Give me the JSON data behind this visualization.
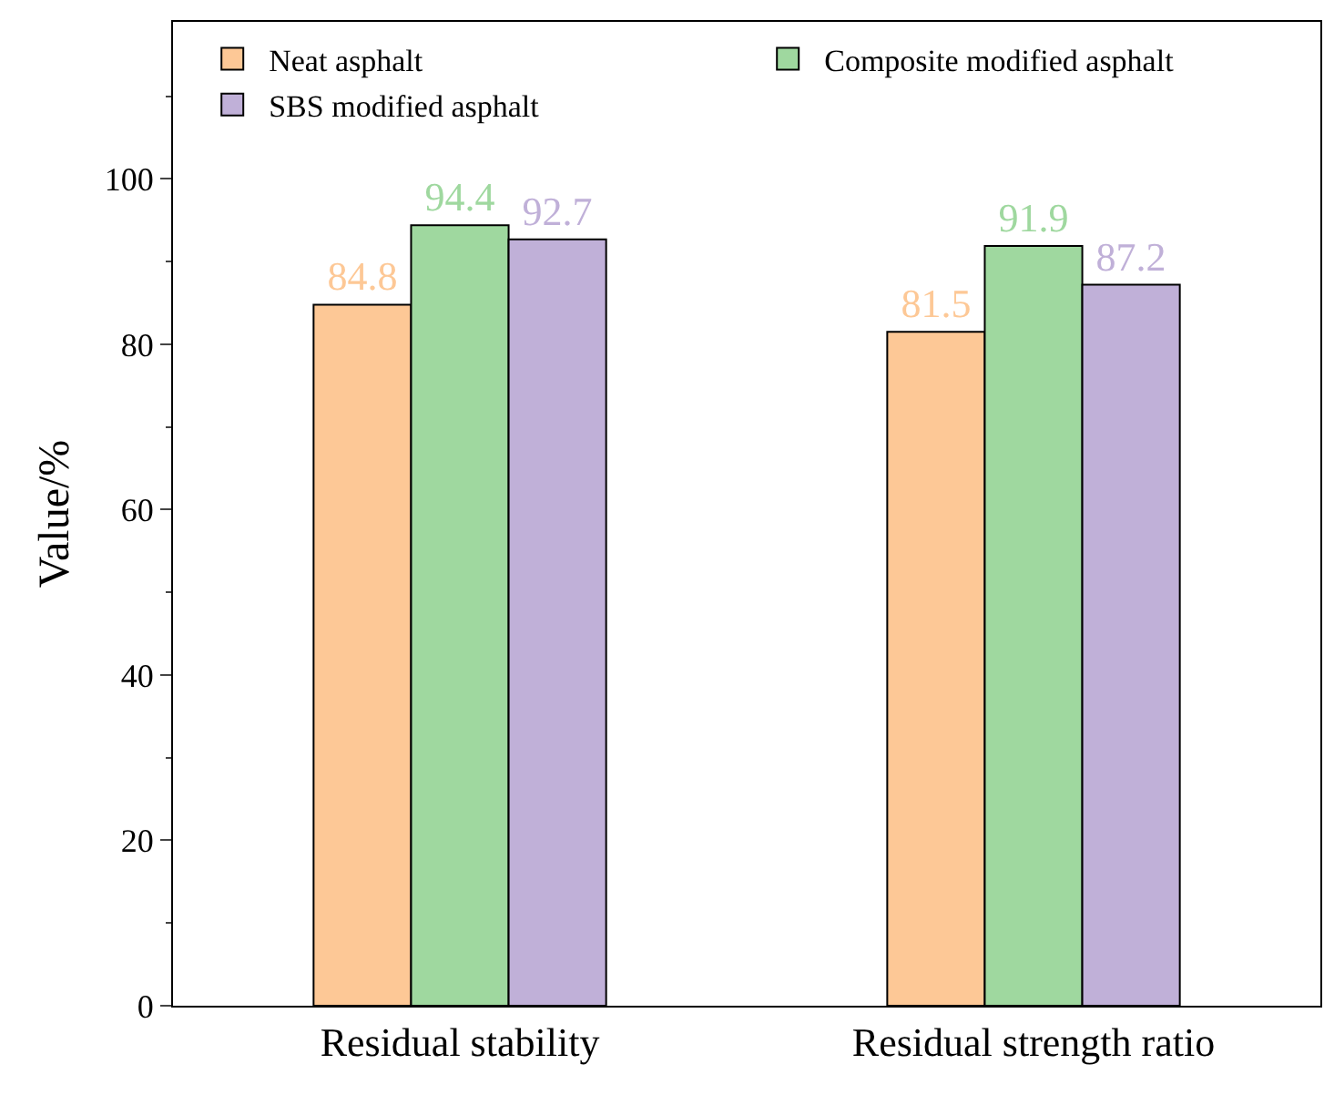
{
  "chart_data": {
    "type": "bar",
    "ylabel": "Value/%",
    "categories": [
      "Residual stability",
      "Residual strength ratio"
    ],
    "series": [
      {
        "name": "Neat asphalt",
        "color": "#fdc896",
        "values": [
          84.8,
          81.5
        ]
      },
      {
        "name": "Composite modified asphalt",
        "color": "#9fd89f",
        "values": [
          94.4,
          91.9
        ]
      },
      {
        "name": "SBS modified asphalt",
        "color": "#c0b0d8",
        "values": [
          92.7,
          87.2
        ]
      }
    ],
    "ylim": [
      0,
      119
    ],
    "yticks": [
      0,
      20,
      40,
      60,
      80,
      100
    ],
    "data_labels": true,
    "legend": "top left",
    "grid": false
  }
}
